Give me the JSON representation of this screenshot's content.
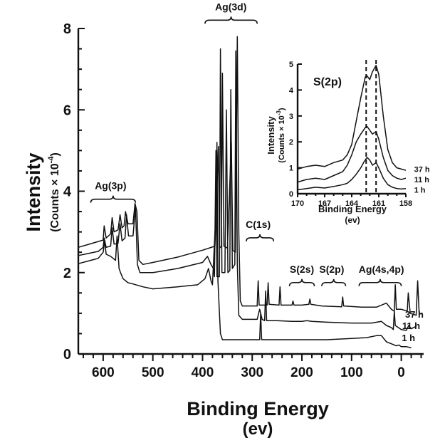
{
  "chart_data": [
    {
      "type": "line",
      "title": "",
      "xlabel": "Binding Energy",
      "xlabel_unit": "(ev)",
      "ylabel": "Intensity",
      "ylabel_unit": "(Counts × 10",
      "ylabel_exponent": "-4",
      "ylabel_close": ")",
      "x_reversed": true,
      "xlim": [
        650,
        -45
      ],
      "ylim": [
        0,
        8
      ],
      "xticks": [
        600,
        500,
        400,
        300,
        200,
        100,
        0
      ],
      "yticks": [
        0,
        2,
        4,
        6,
        8
      ],
      "x_minor_step": 20,
      "y_minor_step": 0.5,
      "series": [
        {
          "name": "37 h",
          "label_at": [
            -45,
            0.98
          ],
          "points": [
            [
              650,
              2.62
            ],
            [
              600,
              2.8
            ],
            [
              598,
              3.15
            ],
            [
              594,
              2.85
            ],
            [
              585,
              2.95
            ],
            [
              582,
              3.35
            ],
            [
              578,
              3.0
            ],
            [
              570,
              3.05
            ],
            [
              566,
              3.42
            ],
            [
              562,
              3.1
            ],
            [
              558,
              3.15
            ],
            [
              555,
              3.5
            ],
            [
              550,
              3.2
            ],
            [
              545,
              3.2
            ],
            [
              540,
              3.2
            ],
            [
              536,
              3.7
            ],
            [
              532,
              3.5
            ],
            [
              528,
              2.3
            ],
            [
              520,
              2.2
            ],
            [
              500,
              2.25
            ],
            [
              450,
              2.38
            ],
            [
              400,
              2.55
            ],
            [
              375,
              2.65
            ],
            [
              368,
              5.1
            ],
            [
              366,
              2.6
            ],
            [
              362,
              2.65
            ],
            [
              360,
              6.9
            ],
            [
              357,
              2.65
            ],
            [
              350,
              2.6
            ],
            [
              342,
              5.2
            ],
            [
              339,
              2.55
            ],
            [
              334,
              2.5
            ],
            [
              330,
              7.8
            ],
            [
              327,
              3.0
            ],
            [
              324,
              1.3
            ],
            [
              320,
              1.18
            ],
            [
              290,
              1.18
            ],
            [
              288,
              1.8
            ],
            [
              286,
              1.2
            ],
            [
              270,
              1.2
            ],
            [
              268,
              1.75
            ],
            [
              266,
              1.22
            ],
            [
              246,
              1.2
            ],
            [
              244,
              1.65
            ],
            [
              242,
              1.2
            ],
            [
              220,
              1.2
            ],
            [
              218,
              1.3
            ],
            [
              216,
              1.2
            ],
            [
              200,
              1.2
            ],
            [
              186,
              1.22
            ],
            [
              184,
              1.35
            ],
            [
              182,
              1.22
            ],
            [
              160,
              1.18
            ],
            [
              120,
              1.16
            ],
            [
              118,
              1.4
            ],
            [
              116,
              1.18
            ],
            [
              80,
              1.15
            ],
            [
              50,
              1.15
            ],
            [
              40,
              1.2
            ],
            [
              30,
              1.25
            ],
            [
              20,
              1.1
            ],
            [
              14,
              1.05
            ],
            [
              12,
              1.7
            ],
            [
              10,
              1.1
            ],
            [
              0,
              1.1
            ],
            [
              -12,
              1.05
            ],
            [
              -14,
              1.5
            ],
            [
              -18,
              1.0
            ],
            [
              -30,
              0.95
            ],
            [
              -33,
              1.8
            ],
            [
              -36,
              1.0
            ],
            [
              -40,
              0.98
            ]
          ]
        },
        {
          "name": "11 h",
          "label_at": [
            -38,
            0.7
          ],
          "points": [
            [
              650,
              2.42
            ],
            [
              610,
              2.52
            ],
            [
              600,
              2.62
            ],
            [
              598,
              2.85
            ],
            [
              594,
              2.62
            ],
            [
              585,
              2.65
            ],
            [
              582,
              3.1
            ],
            [
              578,
              2.7
            ],
            [
              570,
              2.72
            ],
            [
              566,
              3.2
            ],
            [
              562,
              2.78
            ],
            [
              556,
              2.85
            ],
            [
              553,
              3.42
            ],
            [
              549,
              2.9
            ],
            [
              540,
              2.9
            ],
            [
              535,
              3.6
            ],
            [
              531,
              2.2
            ],
            [
              526,
              2.0
            ],
            [
              500,
              2.0
            ],
            [
              450,
              2.1
            ],
            [
              400,
              2.25
            ],
            [
              390,
              2.4
            ],
            [
              383,
              2.2
            ],
            [
              378,
              2.1
            ],
            [
              376,
              1.9
            ],
            [
              373,
              5.0
            ],
            [
              371,
              1.9
            ],
            [
              366,
              1.9
            ],
            [
              364,
              7.5
            ],
            [
              361,
              2.0
            ],
            [
              355,
              2.0
            ],
            [
              352,
              6.0
            ],
            [
              349,
              2.0
            ],
            [
              345,
              2.05
            ],
            [
              343,
              6.5
            ],
            [
              340,
              2.1
            ],
            [
              335,
              2.2
            ],
            [
              333,
              7.45
            ],
            [
              330,
              2.2
            ],
            [
              327,
              0.95
            ],
            [
              320,
              0.85
            ],
            [
              290,
              0.85
            ],
            [
              285,
              1.1
            ],
            [
              280,
              0.85
            ],
            [
              275,
              0.82
            ],
            [
              273,
              1.55
            ],
            [
              271,
              0.82
            ],
            [
              250,
              0.82
            ],
            [
              220,
              0.8
            ],
            [
              200,
              0.8
            ],
            [
              190,
              0.82
            ],
            [
              180,
              0.8
            ],
            [
              150,
              0.78
            ],
            [
              100,
              0.76
            ],
            [
              60,
              0.76
            ],
            [
              40,
              0.8
            ],
            [
              30,
              0.7
            ],
            [
              20,
              0.65
            ],
            [
              16,
              0.6
            ],
            [
              14,
              1.05
            ],
            [
              12,
              0.7
            ],
            [
              0,
              0.6
            ],
            [
              -10,
              0.58
            ],
            [
              -15,
              0.7
            ],
            [
              -20,
              0.62
            ],
            [
              -30,
              0.68
            ]
          ]
        },
        {
          "name": "1 h",
          "label_at": [
            -28,
            0.4
          ],
          "points": [
            [
              650,
              2.22
            ],
            [
              610,
              2.35
            ],
            [
              600,
              2.5
            ],
            [
              597,
              2.78
            ],
            [
              594,
              2.45
            ],
            [
              585,
              2.4
            ],
            [
              575,
              2.3
            ],
            [
              572,
              2.9
            ],
            [
              568,
              2.1
            ],
            [
              565,
              2.0
            ],
            [
              560,
              1.85
            ],
            [
              550,
              1.75
            ],
            [
              540,
              1.72
            ],
            [
              520,
              1.65
            ],
            [
              500,
              1.6
            ],
            [
              450,
              1.65
            ],
            [
              410,
              1.7
            ],
            [
              395,
              1.85
            ],
            [
              388,
              2.1
            ],
            [
              383,
              1.8
            ],
            [
              380,
              1.7
            ],
            [
              375,
              3.0
            ],
            [
              373,
              3.2
            ],
            [
              371,
              5.2
            ],
            [
              369,
              1.8
            ],
            [
              366,
              1.0
            ],
            [
              364,
              0.5
            ],
            [
              360,
              0.35
            ],
            [
              355,
              0.35
            ],
            [
              320,
              0.35
            ],
            [
              285,
              0.35
            ],
            [
              283,
              1.0
            ],
            [
              281,
              0.35
            ],
            [
              250,
              0.35
            ],
            [
              200,
              0.35
            ],
            [
              150,
              0.35
            ],
            [
              100,
              0.38
            ],
            [
              70,
              0.4
            ],
            [
              50,
              0.45
            ],
            [
              40,
              0.45
            ],
            [
              30,
              0.3
            ],
            [
              20,
              0.25
            ],
            [
              10,
              0.2
            ],
            [
              5,
              0.22
            ],
            [
              0,
              0.18
            ],
            [
              -10,
              0.18
            ],
            [
              -20,
              0.15
            ]
          ]
        }
      ],
      "annotations": [
        {
          "text": "Ag(3p)",
          "x": 585,
          "y": 4.05,
          "bracket": [
            625,
            535
          ]
        },
        {
          "text": "Ag(3d)",
          "x": 343,
          "y": 8.45,
          "bracket": [
            395,
            290
          ]
        },
        {
          "text": "C(1s)",
          "x": 288,
          "y": 3.1,
          "bracket": [
            312,
            257
          ]
        },
        {
          "text": "S(2s)",
          "x": 200,
          "y": 2.0,
          "bracket": [
            225,
            175
          ]
        },
        {
          "text": "S(2p)",
          "x": 140,
          "y": 2.0,
          "bracket": [
            160,
            112
          ]
        },
        {
          "text": "Ag(4s,4p)",
          "x": 40,
          "y": 2.0,
          "bracket": [
            85,
            0
          ]
        }
      ]
    },
    {
      "type": "line",
      "title": "S(2p)",
      "xlabel": "Binding Energy",
      "xlabel_unit": "(ev)",
      "ylabel": "Intensity",
      "ylabel_unit": "(Counts × 10",
      "ylabel_exponent": "-3",
      "ylabel_close": ")",
      "x_reversed": true,
      "xlim": [
        170,
        158
      ],
      "ylim": [
        0,
        5
      ],
      "xtick_labels": [
        "170",
        "167",
        "164",
        "161",
        "158"
      ],
      "xticks": [
        170,
        167,
        164,
        161,
        158
      ],
      "yticks": [
        0,
        1,
        2,
        3,
        4,
        5
      ],
      "dashed_lines_x": [
        162.4,
        161.3
      ],
      "series": [
        {
          "name": "37 h",
          "label_at": [
            157.4,
            0.95
          ],
          "points": [
            [
              170,
              0.95
            ],
            [
              169,
              1.05
            ],
            [
              168,
              1.1
            ],
            [
              167,
              1.05
            ],
            [
              166,
              1.2
            ],
            [
              165,
              1.3
            ],
            [
              164.5,
              1.5
            ],
            [
              164,
              1.9
            ],
            [
              163.5,
              2.8
            ],
            [
              163,
              3.7
            ],
            [
              162.5,
              4.5
            ],
            [
              162.3,
              4.55
            ],
            [
              162,
              4.4
            ],
            [
              161.7,
              4.7
            ],
            [
              161.3,
              4.95
            ],
            [
              161,
              4.6
            ],
            [
              160.5,
              3.0
            ],
            [
              160,
              1.7
            ],
            [
              159.5,
              1.2
            ],
            [
              159,
              1.0
            ],
            [
              158.5,
              0.95
            ],
            [
              158,
              0.9
            ]
          ]
        },
        {
          "name": "11 h",
          "label_at": [
            157.4,
            0.55
          ],
          "points": [
            [
              170,
              0.45
            ],
            [
              169,
              0.55
            ],
            [
              168,
              0.6
            ],
            [
              167,
              0.55
            ],
            [
              166,
              0.7
            ],
            [
              165,
              0.85
            ],
            [
              164.5,
              1.1
            ],
            [
              164,
              1.5
            ],
            [
              163.5,
              2.0
            ],
            [
              163,
              2.3
            ],
            [
              162.5,
              2.55
            ],
            [
              162.3,
              2.6
            ],
            [
              162,
              2.45
            ],
            [
              161.7,
              2.3
            ],
            [
              161.3,
              2.4
            ],
            [
              161,
              2.1
            ],
            [
              160.5,
              1.4
            ],
            [
              160,
              0.9
            ],
            [
              159.5,
              0.7
            ],
            [
              159,
              0.6
            ],
            [
              158.5,
              0.55
            ],
            [
              158,
              0.6
            ]
          ]
        },
        {
          "name": "1 h",
          "label_at": [
            157.4,
            0.15
          ],
          "points": [
            [
              170,
              0.15
            ],
            [
              169,
              0.2
            ],
            [
              168,
              0.25
            ],
            [
              167,
              0.22
            ],
            [
              166,
              0.28
            ],
            [
              165,
              0.35
            ],
            [
              164.5,
              0.4
            ],
            [
              164,
              0.55
            ],
            [
              163.5,
              0.75
            ],
            [
              163,
              1.0
            ],
            [
              162.6,
              1.25
            ],
            [
              162.3,
              1.4
            ],
            [
              162,
              1.3
            ],
            [
              161.7,
              1.1
            ],
            [
              161.3,
              1.2
            ],
            [
              161,
              1.0
            ],
            [
              160.5,
              0.6
            ],
            [
              160,
              0.35
            ],
            [
              159.5,
              0.25
            ],
            [
              159,
              0.2
            ],
            [
              158.5,
              0.18
            ],
            [
              158,
              0.2
            ]
          ]
        }
      ]
    }
  ]
}
